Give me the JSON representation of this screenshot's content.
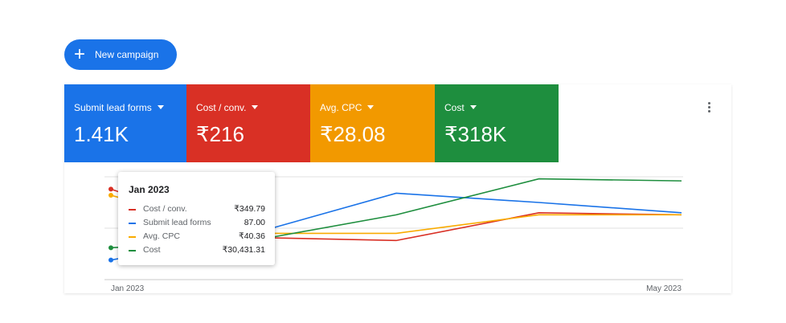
{
  "new_campaign_button": "New campaign",
  "metric_tabs": [
    {
      "label": "Submit lead forms",
      "value": "1.41K",
      "color": "#1a73e8"
    },
    {
      "label": "Cost / conv.",
      "value": "₹216",
      "color": "#d93025"
    },
    {
      "label": "Avg. CPC",
      "value": "₹28.08",
      "color": "#f29900"
    },
    {
      "label": "Cost",
      "value": "₹318K",
      "color": "#1e8e3e"
    }
  ],
  "chart_data": {
    "type": "line",
    "x": [
      "Jan 2023",
      null,
      null,
      null,
      "May 2023"
    ],
    "ylim": [
      0,
      100
    ],
    "series": [
      {
        "name": "Cost / conv.",
        "color": "#d93025",
        "values": [
          88,
          41,
          38,
          65,
          63
        ]
      },
      {
        "name": "Submit lead forms",
        "color": "#1a73e8",
        "values": [
          19,
          45,
          84,
          75,
          65
        ]
      },
      {
        "name": "Avg. CPC",
        "color": "#f9ab00",
        "values": [
          82,
          45,
          45,
          63,
          63
        ]
      },
      {
        "name": "Cost",
        "color": "#1e8e3e",
        "values": [
          31,
          38,
          63,
          98,
          96
        ]
      }
    ]
  },
  "tooltip": {
    "title": "Jan 2023",
    "values": [
      "₹349.79",
      "87.00",
      "₹40.36",
      "₹30,431.31"
    ]
  }
}
